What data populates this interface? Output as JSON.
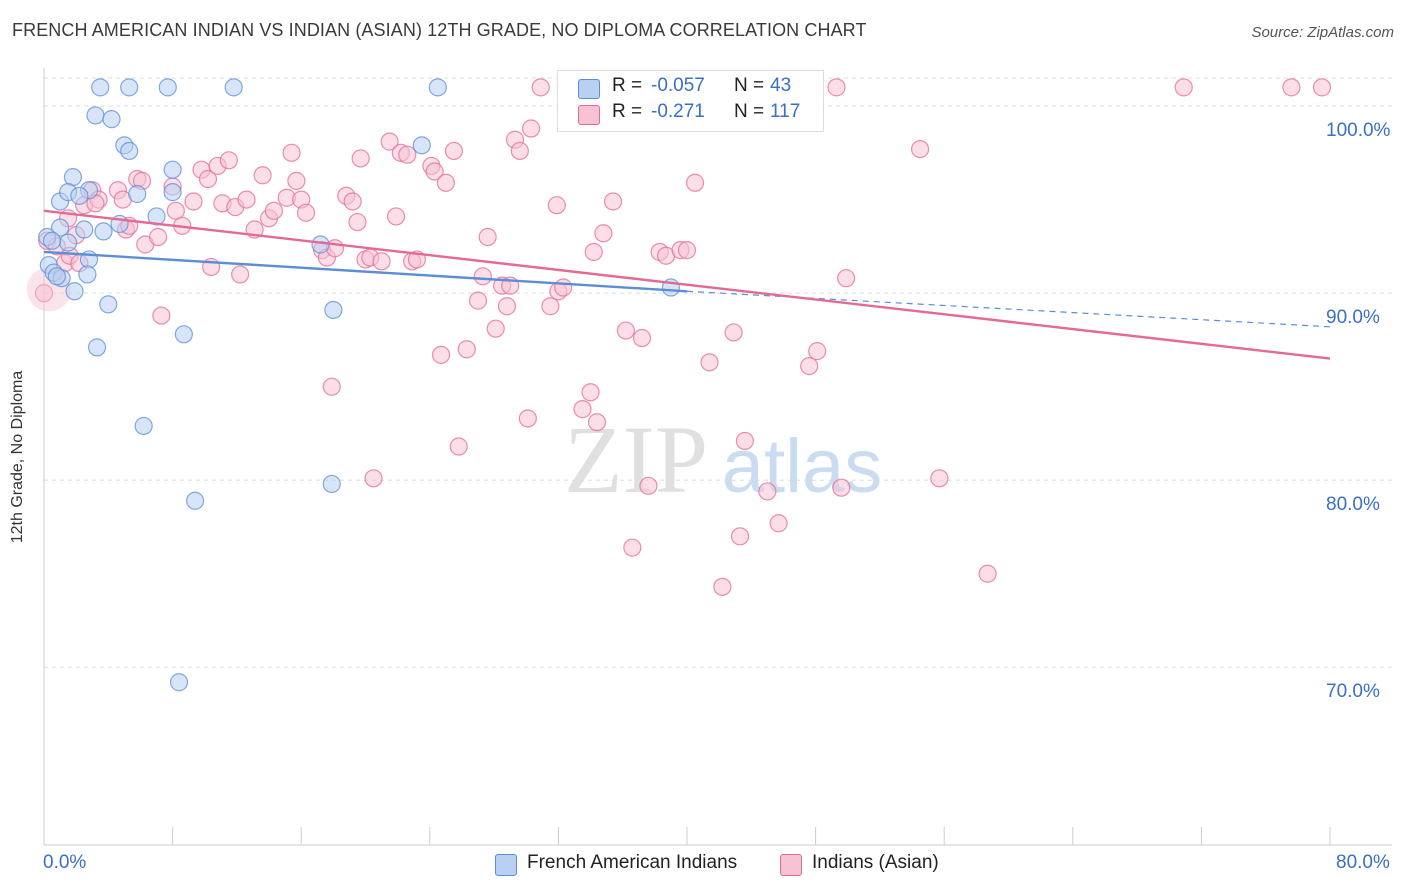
{
  "title": "FRENCH AMERICAN INDIAN VS INDIAN (ASIAN) 12TH GRADE, NO DIPLOMA CORRELATION CHART",
  "source": "Source: ZipAtlas.com",
  "watermark": {
    "zip": "ZIP",
    "atlas": "atlas"
  },
  "colors": {
    "blue": "#5b8ed6",
    "blue_fill": "#b8d0f2",
    "pink": "#e46a95",
    "pink_fill": "#f7c2d3",
    "tick": "#3a6fc4"
  },
  "legend": {
    "r_label": "R =",
    "n_label": "N =",
    "rows": [
      {
        "r": "-0.057",
        "n": "43"
      },
      {
        "r": "-0.271",
        "n": "117"
      }
    ]
  },
  "chart_data": {
    "type": "scatter",
    "xlabel": "",
    "ylabel": "12th Grade, No Diploma",
    "xlim": [
      0,
      80
    ],
    "ylim": [
      60.5,
      101.5
    ],
    "x_tick_labels": [
      "0.0%",
      "80.0%"
    ],
    "y_ticks": [
      {
        "value": 100,
        "label": "100.0%"
      },
      {
        "value": 90,
        "label": "90.0%"
      },
      {
        "value": 80,
        "label": "80.0%"
      },
      {
        "value": 70,
        "label": "70.0%"
      }
    ],
    "series": [
      {
        "name": "French American Indians",
        "color": "blue",
        "trend": {
          "x0": 0,
          "y0": 92.2,
          "x1": 40,
          "y1": 90.1,
          "dash_x1": 80,
          "dash_y1": 88.2
        },
        "points": [
          [
            3.5,
            101
          ],
          [
            5.3,
            101
          ],
          [
            7.7,
            101
          ],
          [
            11.8,
            101
          ],
          [
            24.5,
            101
          ],
          [
            3.2,
            99.5
          ],
          [
            4.2,
            99.3
          ],
          [
            5.0,
            97.9
          ],
          [
            5.3,
            97.6
          ],
          [
            23.5,
            97.9
          ],
          [
            8.0,
            96.6
          ],
          [
            1.8,
            96.2
          ],
          [
            1.0,
            94.9
          ],
          [
            1.5,
            95.4
          ],
          [
            2.8,
            95.5
          ],
          [
            2.2,
            95.2
          ],
          [
            5.8,
            95.3
          ],
          [
            8.0,
            95.4
          ],
          [
            7.0,
            94.1
          ],
          [
            4.7,
            93.7
          ],
          [
            1.0,
            93.5
          ],
          [
            2.5,
            93.4
          ],
          [
            3.7,
            93.3
          ],
          [
            0.2,
            93.0
          ],
          [
            1.5,
            92.7
          ],
          [
            0.5,
            92.8
          ],
          [
            17.2,
            92.6
          ],
          [
            0.3,
            91.5
          ],
          [
            0.6,
            91.1
          ],
          [
            2.8,
            91.8
          ],
          [
            1.1,
            90.8
          ],
          [
            2.7,
            91.0
          ],
          [
            0.8,
            90.9
          ],
          [
            1.9,
            90.1
          ],
          [
            39.0,
            90.3
          ],
          [
            4.0,
            89.4
          ],
          [
            18.0,
            89.1
          ],
          [
            8.7,
            87.8
          ],
          [
            3.3,
            87.1
          ],
          [
            6.2,
            82.9
          ],
          [
            17.9,
            79.8
          ],
          [
            9.4,
            78.9
          ],
          [
            8.4,
            69.2
          ]
        ]
      },
      {
        "name": "Indians (Asian)",
        "color": "pink",
        "trend": {
          "x0": 0,
          "y0": 94.4,
          "x1": 80,
          "y1": 86.5
        },
        "points": [
          [
            0.0,
            90.0
          ],
          [
            0.2,
            92.8
          ],
          [
            0.8,
            92.5
          ],
          [
            1.3,
            91.6
          ],
          [
            1.5,
            94.0
          ],
          [
            1.6,
            92.0
          ],
          [
            2.2,
            91.6
          ],
          [
            2.0,
            93.1
          ],
          [
            2.5,
            94.7
          ],
          [
            3.0,
            95.5
          ],
          [
            3.4,
            95.0
          ],
          [
            3.2,
            94.8
          ],
          [
            4.6,
            95.5
          ],
          [
            4.9,
            95.0
          ],
          [
            5.1,
            93.4
          ],
          [
            5.3,
            93.6
          ],
          [
            5.8,
            96.1
          ],
          [
            6.1,
            96.0
          ],
          [
            6.3,
            92.6
          ],
          [
            7.1,
            93.0
          ],
          [
            7.3,
            88.8
          ],
          [
            8.0,
            95.7
          ],
          [
            8.2,
            94.4
          ],
          [
            8.6,
            93.6
          ],
          [
            9.3,
            94.9
          ],
          [
            9.8,
            96.6
          ],
          [
            10.2,
            96.1
          ],
          [
            10.4,
            91.4
          ],
          [
            10.8,
            96.8
          ],
          [
            11.1,
            94.8
          ],
          [
            11.5,
            97.1
          ],
          [
            11.9,
            94.6
          ],
          [
            12.2,
            91.0
          ],
          [
            12.6,
            95.0
          ],
          [
            13.1,
            93.4
          ],
          [
            13.6,
            96.3
          ],
          [
            14.0,
            94.0
          ],
          [
            14.3,
            94.4
          ],
          [
            15.1,
            95.1
          ],
          [
            15.4,
            97.5
          ],
          [
            15.7,
            96.0
          ],
          [
            16.0,
            95.0
          ],
          [
            16.3,
            94.3
          ],
          [
            17.3,
            92.3
          ],
          [
            17.6,
            91.9
          ],
          [
            18.1,
            92.4
          ],
          [
            17.9,
            85.0
          ],
          [
            18.8,
            95.2
          ],
          [
            19.2,
            94.9
          ],
          [
            19.5,
            93.8
          ],
          [
            19.7,
            97.2
          ],
          [
            20.0,
            91.8
          ],
          [
            20.3,
            91.9
          ],
          [
            20.5,
            80.1
          ],
          [
            21.0,
            91.7
          ],
          [
            21.5,
            98.1
          ],
          [
            21.9,
            94.1
          ],
          [
            22.2,
            97.5
          ],
          [
            22.6,
            97.4
          ],
          [
            22.9,
            91.7
          ],
          [
            23.2,
            91.8
          ],
          [
            24.1,
            96.8
          ],
          [
            24.3,
            96.5
          ],
          [
            24.7,
            86.7
          ],
          [
            25.0,
            95.9
          ],
          [
            25.5,
            97.6
          ],
          [
            25.8,
            81.8
          ],
          [
            26.3,
            87.0
          ],
          [
            27.0,
            89.6
          ],
          [
            27.3,
            90.9
          ],
          [
            27.6,
            93.0
          ],
          [
            28.1,
            88.1
          ],
          [
            28.5,
            90.4
          ],
          [
            28.8,
            89.3
          ],
          [
            29.0,
            90.4
          ],
          [
            29.3,
            98.2
          ],
          [
            29.6,
            97.6
          ],
          [
            30.3,
            98.8
          ],
          [
            30.1,
            83.3
          ],
          [
            30.9,
            101
          ],
          [
            31.5,
            89.3
          ],
          [
            31.9,
            94.7
          ],
          [
            32.0,
            90.1
          ],
          [
            32.3,
            90.3
          ],
          [
            34.0,
            84.7
          ],
          [
            34.2,
            92.2
          ],
          [
            34.4,
            83.1
          ],
          [
            34.8,
            93.2
          ],
          [
            35.4,
            94.9
          ],
          [
            36.2,
            88.0
          ],
          [
            36.6,
            76.4
          ],
          [
            37.2,
            87.6
          ],
          [
            37.6,
            79.7
          ],
          [
            38.3,
            92.2
          ],
          [
            38.7,
            92.0
          ],
          [
            39.6,
            92.3
          ],
          [
            40.0,
            92.3
          ],
          [
            40.5,
            95.9
          ],
          [
            41.4,
            86.3
          ],
          [
            42.2,
            74.3
          ],
          [
            42.9,
            87.9
          ],
          [
            43.3,
            77.0
          ],
          [
            43.6,
            82.1
          ],
          [
            45.0,
            79.4
          ],
          [
            45.7,
            77.7
          ],
          [
            47.6,
            86.1
          ],
          [
            48.1,
            86.9
          ],
          [
            49.3,
            101
          ],
          [
            49.6,
            79.6
          ],
          [
            49.9,
            90.8
          ],
          [
            54.5,
            97.7
          ],
          [
            55.7,
            80.1
          ],
          [
            58.7,
            75.0
          ],
          [
            70.9,
            101
          ],
          [
            77.6,
            101
          ],
          [
            79.5,
            101
          ],
          [
            33.5,
            83.8
          ]
        ]
      }
    ]
  }
}
